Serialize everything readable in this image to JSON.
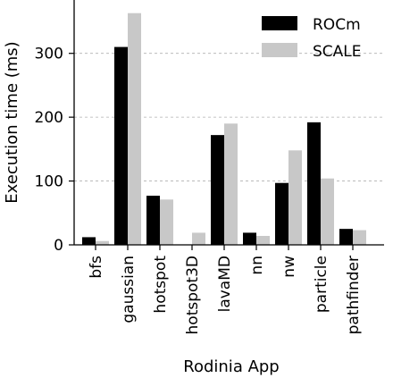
{
  "chart_data": {
    "type": "bar",
    "xlabel": "Rodinia App",
    "ylabel": "Execution time (ms)",
    "ylim": [
      0,
      380
    ],
    "yticks": [
      0,
      100,
      200,
      300
    ],
    "grid": "horizontal dashed",
    "legend_position": "top-right",
    "categories": [
      "bfs",
      "gaussian",
      "hotspot",
      "hotspot3D",
      "lavaMD",
      "nn",
      "nw",
      "particle",
      "pathfinder"
    ],
    "series": [
      {
        "name": "ROCm",
        "color": "#000000",
        "values": [
          12,
          310,
          77,
          0,
          172,
          19,
          97,
          192,
          25
        ]
      },
      {
        "name": "SCALE",
        "color": "#c8c8c8",
        "values": [
          6,
          363,
          71,
          19,
          190,
          14,
          148,
          104,
          23
        ]
      }
    ]
  }
}
